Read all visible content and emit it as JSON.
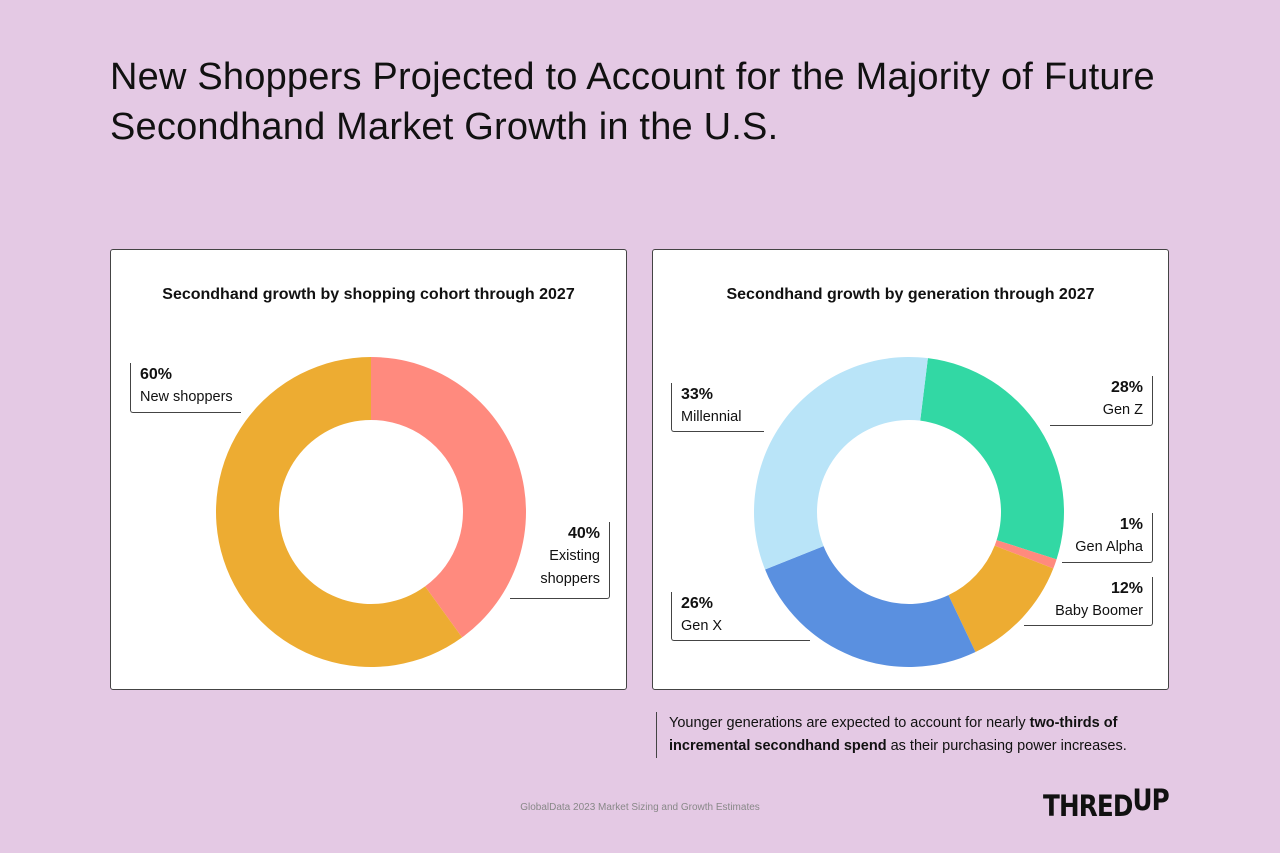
{
  "title": "New Shoppers Projected to Account for the Majority of Future Secondhand Market Growth in the U.S.",
  "colors": {
    "background": "#E4C9E4",
    "salmon": "#FF8A7E",
    "yellow": "#EDAC32",
    "green": "#32D8A4",
    "light_blue": "#B9E4F8",
    "blue": "#5A90E0"
  },
  "chart_data": [
    {
      "type": "pie",
      "title": "Secondhand growth by shopping cohort through 2027",
      "donut": true,
      "direction": "clockwise-from-top",
      "slices": [
        {
          "label": "Existing shoppers",
          "value": 40,
          "display": "40%",
          "color": "#FF8A7E"
        },
        {
          "label": "New shoppers",
          "value": 60,
          "display": "60%",
          "color": "#EDAC32"
        }
      ]
    },
    {
      "type": "pie",
      "title": "Secondhand growth by generation through 2027",
      "donut": true,
      "direction": "clockwise",
      "slices": [
        {
          "label": "Gen Z",
          "value": 28,
          "display": "28%",
          "color": "#32D8A4"
        },
        {
          "label": "Gen Alpha",
          "value": 1,
          "display": "1%",
          "color": "#FF8A7E"
        },
        {
          "label": "Baby Boomer",
          "value": 12,
          "display": "12%",
          "color": "#EDAC32"
        },
        {
          "label": "Gen X",
          "value": 26,
          "display": "26%",
          "color": "#5A90E0"
        },
        {
          "label": "Millennial",
          "value": 33,
          "display": "33%",
          "color": "#B9E4F8"
        }
      ]
    }
  ],
  "note": {
    "text1": "Younger generations are expected to account for nearly ",
    "bold1": "two-thirds  of",
    "bold2": "incremental secondhand spend",
    "text2": " as their purchasing power increases."
  },
  "source": "GlobalData 2023 Market Sizing and Growth Estimates",
  "logo": {
    "main": "THRED",
    "sup": "UP"
  }
}
